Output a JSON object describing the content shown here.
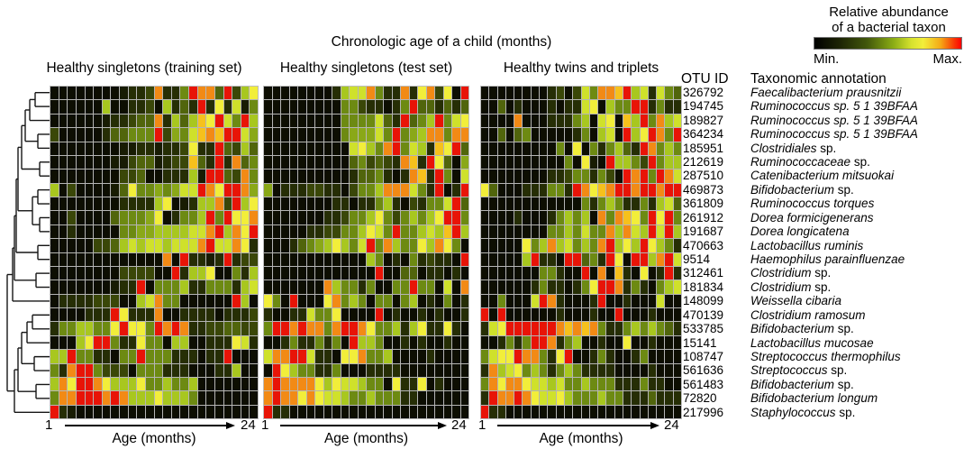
{
  "main_title": "Chronologic age of a child (months)",
  "columns_header": {
    "otu": "OTU ID",
    "taxon": "Taxonomic annotation"
  },
  "axis": {
    "start": "1",
    "end": "24",
    "label": "Age (months)"
  },
  "legend": {
    "title_line1": "Relative abundance",
    "title_line2": "of a bacterial taxon",
    "min_label": "Min.",
    "max_label": "Max.",
    "gradient_stops": [
      "#000000 0%",
      "#1e2605 18%",
      "#42580b 36%",
      "#8cae15 54%",
      "#d6e22e 66%",
      "#f2ee3a 74%",
      "#f5a816 86%",
      "#f83905 95%",
      "#ff0000 100%"
    ]
  },
  "chart_data": {
    "type": "heatmap",
    "title": "Chronologic age of a child (months)",
    "xlabel": "Age (months)",
    "x_range": [
      1,
      24
    ],
    "value_scale": {
      "description": "Relative abundance of a bacterial taxon",
      "min_label": "Min.",
      "max_label": "Max."
    },
    "palette": {
      "0": "#0d0e02",
      "1": "#181c03",
      "2": "#262e05",
      "3": "#3a4708",
      "4": "#51650c",
      "5": "#6d8a12",
      "6": "#8aa818",
      "7": "#a8c71f",
      "8": "#cfe12b",
      "9": "#f2ee3a",
      "a": "#f6c11c",
      "b": "#f28a15",
      "c": "#e81407"
    },
    "rows": [
      {
        "otu": "326792",
        "name": "Faecalibacterium prausnitzii",
        "suffix": ""
      },
      {
        "otu": "194745",
        "name": "Ruminococcus sp. 5 1 39BFAA",
        "suffix": ""
      },
      {
        "otu": "189827",
        "name": "Ruminococcus sp. 5 1 39BFAA",
        "suffix": ""
      },
      {
        "otu": "364234",
        "name": "Ruminococcus sp. 5 1 39BFAA",
        "suffix": ""
      },
      {
        "otu": "185951",
        "name": "Clostridiales",
        "suffix": "sp."
      },
      {
        "otu": "212619",
        "name": "Ruminococcaceae",
        "suffix": "sp."
      },
      {
        "otu": "287510",
        "name": "Catenibacterium mitsuokai",
        "suffix": ""
      },
      {
        "otu": "469873",
        "name": "Bifidobacterium",
        "suffix": "sp."
      },
      {
        "otu": "361809",
        "name": "Ruminococcus torques",
        "suffix": ""
      },
      {
        "otu": "261912",
        "name": "Dorea formicigenerans",
        "suffix": ""
      },
      {
        "otu": "191687",
        "name": "Dorea longicatena",
        "suffix": ""
      },
      {
        "otu": "470663",
        "name": "Lactobacillus ruminis",
        "suffix": ""
      },
      {
        "otu": "9514",
        "name": "Haemophilus parainfluenzae",
        "suffix": ""
      },
      {
        "otu": "312461",
        "name": "Clostridium",
        "suffix": "sp."
      },
      {
        "otu": "181834",
        "name": "Clostridium",
        "suffix": "sp."
      },
      {
        "otu": "148099",
        "name": "Weissella cibaria",
        "suffix": ""
      },
      {
        "otu": "470139",
        "name": "Clostridium ramosum",
        "suffix": ""
      },
      {
        "otu": "533785",
        "name": "Bifidobacterium",
        "suffix": "sp."
      },
      {
        "otu": "15141",
        "name": "Lactobacillus mucosae",
        "suffix": ""
      },
      {
        "otu": "108747",
        "name": "Streptococcus thermophilus",
        "suffix": ""
      },
      {
        "otu": "561636",
        "name": "Streptococcus",
        "suffix": "sp."
      },
      {
        "otu": "561483",
        "name": "Bifidobacterium",
        "suffix": "sp."
      },
      {
        "otu": "72820",
        "name": "Bifidobacterium longum",
        "suffix": ""
      },
      {
        "otu": "217996",
        "name": "Staphylococcus",
        "suffix": "sp."
      }
    ],
    "panels": [
      {
        "title": "Healthy singletons (training set)",
        "rows": [
          "000000001223b225cbb4c379",
          "00000070022307242c292815",
          "000000122344b2747a9c85c7",
          "300000244555c3658abacc86",
          "0000000011221223922c4374",
          "0000000113441233a42c2b45",
          "000000003340022271cc43b5",
          "70300001495565688cb9ccb6",
          "0000000022227901277b3c79",
          "003000045556902557c5c99b",
          "002000005566777788bc7b9c",
          "00000334787887888bc88b92",
          "0000000000000b0c2212c233",
          "00000000333300c277900527",
          "0000000122c0555722555278",
          "022223330078b55000000c70",
          "0000222c9222b00222202223",
          "25577559c995cbcb22334433",
          "00079cc52295507700222982",
          "77c5522055c555222022c000",
          "52bcc5333055522200022700",
          "7b9ccb977795575570000000",
          "5bbcccbcb777977750000000",
          "c21000000000000000000000"
        ]
      },
      {
        "title": "Healthy singletons (test set)",
        "rows": [
          "000000002788b522b29b390c",
          "00000000055322025c442424",
          "0000000005555842c457c589",
          "000000000566685c567bb5bb",
          "00000000008975bc5872a9c4",
          "0000000000453432ba2c9406",
          "00000000002445202ba2c508",
          "60222332203557bbb852c02c",
          "0000000022022572032558c4",
          "000000022355795357579cc5",
          "000002233557985c55787ac7",
          "000245679758c5b75597b950",
          "00000000000075020523220c",
          "0000000000000c0044022020",
          "0000000b755250055c55080b",
          "950c0009b575055057020502",
          "2002285590000c0200202002",
          "5ccbcbb5bccb955727922920",
          "0025225250c7750020200200",
          "8bbcc822099b557000020000",
          "0c9755225000222200000000",
          "bcbbbb979887550922902000",
          "bcbb9b988755755522000000",
          "c22000000000000000000000"
        ]
      },
      {
        "title": "Healthy twins and triplets",
        "rows": [
          "00000000230385bbac782854",
          "004020002022890755cc2522",
          "0000b000222570890a7c5b78",
          "00404500000250780c79cb5c",
          "0000000005090525742cb575",
          "000000000050910c7753c577",
          "00000000223552530cbc5cb8",
          "94000222552cb9abccbccbcc",
          "000000000000525752252784",
          "00002000257570b5ba95c9c5",
          "000000005575855b7b87c8c7",
          "00000957b78575bc797c9752",
          "000007c220cc452c90cc7bc8",
          "000000055200c0b0a20902c2",
          "00000025220259ccb2520578",
          "0050008cb20002c002000800",
          "c0c0000002000200c0002000",
          "289ccccccbabab5225757542",
          "002525ccb257002009002000",
          "5899cbb529c0025200250000",
          "2b7895752575222200002000",
          "5b9bb9887855755522252200",
          "2cbbcb988975557552224222",
          "c22000000000000000000000"
        ]
      }
    ],
    "dendrogram": {
      "merges": [
        [
          "L0",
          "L1",
          33
        ],
        [
          "N0",
          "L2",
          27
        ],
        [
          "L3",
          "L4",
          36
        ],
        [
          "N1",
          "N2",
          22
        ],
        [
          "L5",
          "L6",
          38
        ],
        [
          "N3",
          "N4",
          18
        ],
        [
          "L7",
          "L8",
          36
        ],
        [
          "L9",
          "L10",
          38
        ],
        [
          "N6",
          "N7",
          30
        ],
        [
          "N5",
          "N8",
          14
        ],
        [
          "L11",
          "L12",
          36
        ],
        [
          "N9",
          "N10",
          12
        ],
        [
          "L13",
          "L14",
          34
        ],
        [
          "N11",
          "N12",
          10
        ],
        [
          "N13",
          "L15",
          8
        ],
        [
          "L16",
          "L17",
          30
        ],
        [
          "N15",
          "L18",
          24
        ],
        [
          "L19",
          "L20",
          32
        ],
        [
          "N16",
          "N17",
          18
        ],
        [
          "L21",
          "L22",
          34
        ],
        [
          "N18",
          "N19",
          14
        ],
        [
          "N20",
          "L23",
          10
        ],
        [
          "N14",
          "N21",
          2
        ]
      ]
    }
  }
}
